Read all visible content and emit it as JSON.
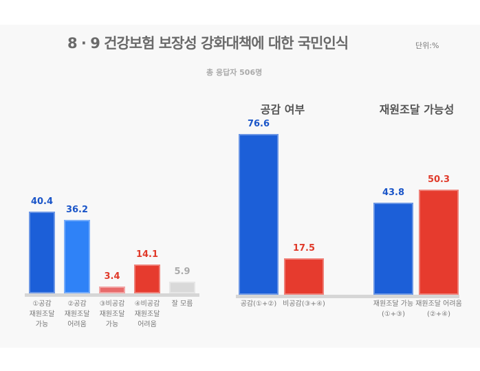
{
  "title": "8 · 9 건강보험 보장성 강화대책에 대한 국민인식",
  "unit": "단위:%",
  "respondents": "총 응답자 506명",
  "chart_data": [
    {
      "type": "bar",
      "title": "",
      "categories": [
        "①공감\n재원조달\n가능",
        "②공감\n재원조달\n어려움",
        "③비공감\n재원조달\n가능",
        "④비공감\n재원조달\n어려움",
        "잘 모름"
      ],
      "values": [
        40.4,
        36.2,
        3.4,
        14.1,
        5.9
      ],
      "colors": [
        "#1c5fd8",
        "#2f82f7",
        "#e86a6a",
        "#e63b2e",
        "#d9d9d9"
      ],
      "label_colors": [
        "#1a55c8",
        "#1a55c8",
        "#e03a2a",
        "#e03a2a",
        "#aaaaaa"
      ]
    },
    {
      "type": "bar",
      "title": "공감 여부",
      "categories": [
        "공감(①+②)",
        "비공감(③+④)"
      ],
      "values": [
        76.6,
        17.5
      ],
      "colors": [
        "#1c5fd8",
        "#e63b2e"
      ],
      "label_colors": [
        "#1a55c8",
        "#e03a2a"
      ]
    },
    {
      "type": "bar",
      "title": "재원조달 가능성",
      "categories": [
        "재원조달 가능\n(①+③)",
        "재원조달 어려움\n(②+④)"
      ],
      "values": [
        43.8,
        50.3
      ],
      "colors": [
        "#1c5fd8",
        "#e63b2e"
      ],
      "label_colors": [
        "#1a55c8",
        "#e03a2a"
      ]
    }
  ]
}
